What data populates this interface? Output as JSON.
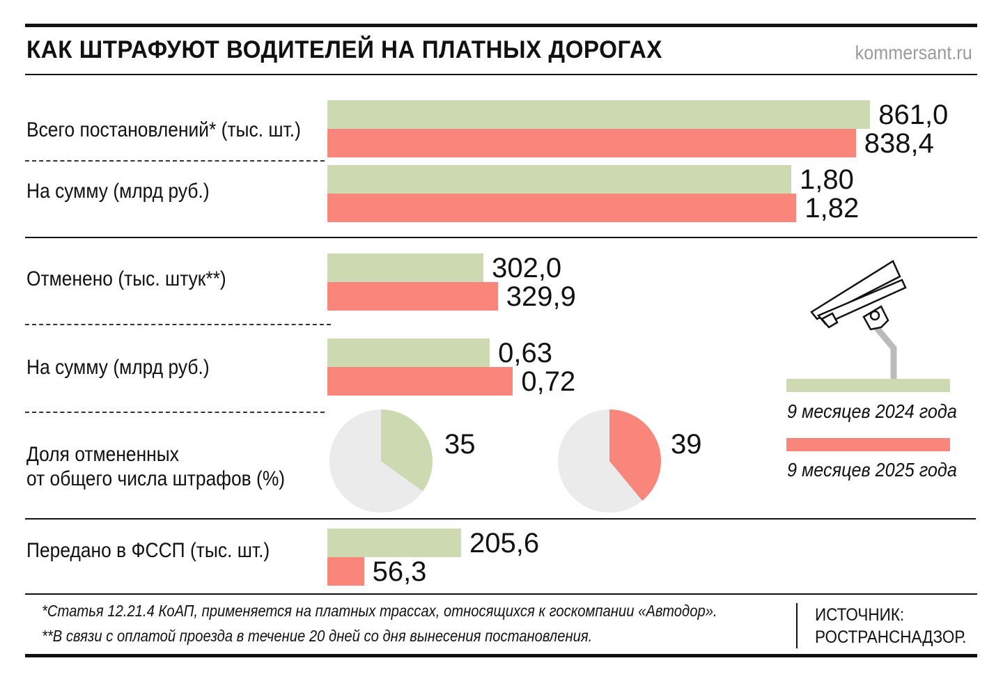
{
  "header": {
    "title": "КАК ШТРАФУЮТ ВОДИТЕЛЕЙ НА ПЛАТНЫХ ДОРОГАХ",
    "site": "kommersant.ru"
  },
  "colors": {
    "series_2024": "#cdd9b0",
    "series_2025": "#f8867a",
    "pie_rest": "#ebebeb"
  },
  "chart_data": {
    "type": "bar",
    "orientation": "horizontal",
    "legend_position": "right",
    "series_names": [
      "9 месяцев 2024 года",
      "9 месяцев 2025 года"
    ],
    "groups": [
      {
        "label": "Всего постановлений* (тыс. шт.)",
        "values": [
          861.0,
          838.4
        ],
        "value_labels": [
          "861,0",
          "838,4"
        ]
      },
      {
        "label": "На сумму (млрд руб.)",
        "values": [
          1.8,
          1.82
        ],
        "value_labels": [
          "1,80",
          "1,82"
        ]
      },
      {
        "label": "Отменено (тыс. штук**)",
        "values": [
          302.0,
          329.9
        ],
        "value_labels": [
          "302,0",
          "329,9"
        ]
      },
      {
        "label": "На сумму (млрд руб.)",
        "values": [
          0.63,
          0.72
        ],
        "value_labels": [
          "0,63",
          "0,72"
        ]
      },
      {
        "label": "Передано в ФССП (тыс. шт.)",
        "values": [
          205.6,
          56.3
        ],
        "value_labels": [
          "205,6",
          "56,3"
        ]
      }
    ],
    "pies": {
      "label_line1": "Доля отмененных",
      "label_line2": "от общего числа штрафов (%)",
      "values": [
        35,
        39
      ],
      "value_labels": [
        "35",
        "39"
      ]
    }
  },
  "legend": {
    "items": [
      "9 месяцев 2024 года",
      "9 месяцев 2025 года"
    ],
    "icon": "surveillance-camera-icon"
  },
  "footer": {
    "note1": "*Статья 12.21.4 КоАП, применяется на платных трассах, относящихся к госкомпании «Автодор».",
    "note2": "**В связи с оплатой проезда в течение 20 дней со дня вынесения постановления.",
    "source_line1": "ИСТОЧНИК:",
    "source_line2": "РОСТРАНСНАДЗОР."
  }
}
